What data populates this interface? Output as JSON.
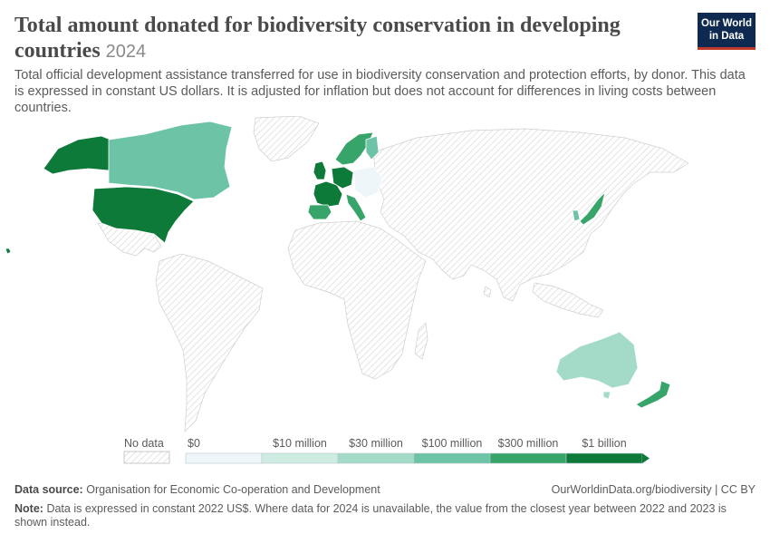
{
  "title": "Total amount donated for biodiversity conservation in developing countries",
  "year": "2024",
  "subtitle": "Total official development assistance transferred for use in biodiversity conservation and protection efforts, by donor. This data is expressed in constant US dollars. It is adjusted for inflation but does not account for differences in living costs between countries.",
  "logo": {
    "line1": "Our World",
    "line2": "in Data"
  },
  "legend": {
    "no_data_label": "No data",
    "bins": [
      {
        "label": "$0",
        "color": "#eef6fa"
      },
      {
        "label": "$10 million",
        "color": "#cfece3"
      },
      {
        "label": "$30 million",
        "color": "#a4dac8"
      },
      {
        "label": "$100 million",
        "color": "#6cc3a6"
      },
      {
        "label": "$300 million",
        "color": "#37a46a"
      },
      {
        "label": "$1 billion",
        "color": "#0e7a3a"
      }
    ]
  },
  "map_data": {
    "levels": {
      "no_data": "#ececec",
      "zero": "#eef6fa",
      "10m": "#cfece3",
      "30m": "#a4dac8",
      "100m": "#6cc3a6",
      "300m": "#37a46a",
      "1b": "#0e7a3a"
    },
    "donors": [
      {
        "country": "United States",
        "level": "1b"
      },
      {
        "country": "Canada",
        "level": "100m"
      },
      {
        "country": "Germany",
        "level": "1b"
      },
      {
        "country": "France",
        "level": "1b"
      },
      {
        "country": "United Kingdom",
        "level": "1b"
      },
      {
        "country": "Spain",
        "level": "300m"
      },
      {
        "country": "Italy",
        "level": "300m"
      },
      {
        "country": "Sweden",
        "level": "300m"
      },
      {
        "country": "Norway",
        "level": "300m"
      },
      {
        "country": "Japan",
        "level": "300m"
      },
      {
        "country": "Australia",
        "level": "30m"
      },
      {
        "country": "New Zealand",
        "level": "300m"
      },
      {
        "country": "South Korea",
        "level": "100m"
      },
      {
        "country": "Finland",
        "level": "100m"
      },
      {
        "country": "Denmark",
        "level": "300m"
      },
      {
        "country": "Switzerland",
        "level": "300m"
      },
      {
        "country": "Poland",
        "level": "zero"
      }
    ]
  },
  "footer": {
    "source_label": "Data source:",
    "source_text": "Organisation for Economic Co-operation and Development",
    "url": "OurWorldinData.org/biodiversity | CC BY",
    "note_label": "Note:",
    "note_text": "Data is expressed in constant 2022 US$. Where data for 2024 is unavailable, the value from the closest year between 2022 and 2023 is shown instead."
  }
}
